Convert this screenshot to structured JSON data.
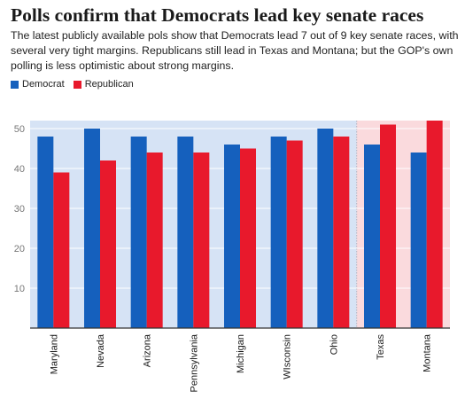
{
  "title": "Polls confirm that Democrats lead key senate races",
  "subtitle": "The latest publicly available pols show that Democrats lead 7 out of 9 key senate races, with several very tight margins. Republicans still lead in Texas and Montana; but the GOP's own polling is less optimistic about strong margins.",
  "legend": {
    "democrat": "Democrat",
    "republican": "Republican"
  },
  "colors": {
    "democrat": "#1560bd",
    "republican": "#e8192c",
    "dem_region": "#d6e3f5",
    "rep_region": "#fadadd"
  },
  "chart_data": {
    "type": "bar",
    "categories": [
      "Maryland",
      "Nevada",
      "Arizona",
      "Pennsylvania",
      "Michigan",
      "WIsconsin",
      "Ohio",
      "Texas",
      "Montana"
    ],
    "series": [
      {
        "name": "Democrat",
        "values": [
          48,
          50,
          48,
          48,
          46,
          48,
          50,
          46,
          44
        ]
      },
      {
        "name": "Republican",
        "values": [
          39,
          42,
          44,
          44,
          45,
          47,
          48,
          51,
          52
        ]
      }
    ],
    "yticks": [
      10,
      20,
      30,
      40,
      50
    ],
    "ylim": [
      0,
      52
    ],
    "grid": true,
    "legend_position": "top-left",
    "shaded_regions": [
      {
        "from": "Maryland",
        "to": "Ohio",
        "color": "dem_region"
      },
      {
        "from": "Texas",
        "to": "Montana",
        "color": "rep_region"
      }
    ]
  }
}
